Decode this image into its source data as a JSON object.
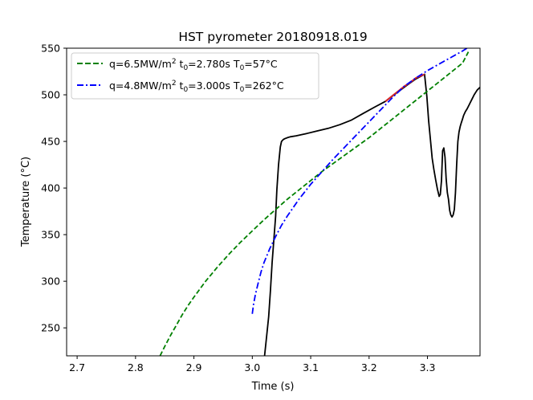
{
  "chart_data": {
    "type": "line",
    "title": "HST pyrometer 20180918.019",
    "xlabel": "Time (s)",
    "ylabel": "Temperature (°C)",
    "xlim": [
      2.682,
      3.39
    ],
    "ylim": [
      220,
      550
    ],
    "xticks": [
      2.7,
      2.8,
      2.9,
      3.0,
      3.1,
      3.2,
      3.3
    ],
    "xtick_labels": [
      "2.7",
      "2.8",
      "2.9",
      "3.0",
      "3.1",
      "3.2",
      "3.3"
    ],
    "yticks": [
      250,
      300,
      350,
      400,
      450,
      500,
      550
    ],
    "ytick_labels": [
      "250",
      "300",
      "350",
      "400",
      "450",
      "500",
      "550"
    ],
    "grid": false,
    "legend_position": "upper-left",
    "legend": [
      {
        "q": "q=6.5MW/m",
        "q_sup": "2",
        "t0": " t",
        "t0_sub": "0",
        "t0_val": "=2.780s T",
        "T0_sub": "0",
        "T0_val": "=57°C",
        "color": "#008000",
        "style": "dashed"
      },
      {
        "q": "q=4.8MW/m",
        "q_sup": "2",
        "t0": " t",
        "t0_sub": "0",
        "t0_val": "=3.000s T",
        "T0_sub": "0",
        "T0_val": "=262°C",
        "color": "#0000ff",
        "style": "dashdot"
      }
    ],
    "series": [
      {
        "role": "measured",
        "color": "#000000",
        "style": "solid",
        "x": [
          3.021,
          3.024,
          3.028,
          3.031,
          3.034,
          3.037,
          3.04,
          3.042,
          3.045,
          3.048,
          3.05,
          3.053,
          3.056,
          3.06,
          3.065,
          3.075,
          3.09,
          3.11,
          3.13,
          3.15,
          3.17,
          3.19,
          3.21,
          3.228,
          3.245,
          3.262,
          3.28,
          3.295,
          3.299,
          3.302,
          3.305,
          3.308,
          3.311,
          3.314,
          3.317,
          3.32,
          3.322,
          3.324,
          3.326,
          3.328,
          3.33,
          3.332,
          3.334,
          3.336,
          3.338,
          3.34,
          3.342,
          3.344,
          3.346,
          3.348,
          3.35,
          3.352,
          3.354,
          3.356,
          3.358,
          3.36,
          3.362,
          3.365,
          3.368,
          3.372,
          3.376,
          3.38,
          3.385,
          3.39
        ],
        "y": [
          220,
          238,
          262,
          290,
          320,
          345,
          370,
          398,
          425,
          444,
          450,
          452,
          453,
          454,
          455,
          456,
          458,
          461,
          464,
          468,
          473,
          480,
          487,
          493,
          501,
          509,
          517,
          522,
          498,
          472,
          452,
          432,
          420,
          409,
          399,
          391,
          393,
          408,
          440,
          443,
          433,
          410,
          395,
          388,
          376,
          371,
          369,
          371,
          377,
          395,
          425,
          450,
          460,
          466,
          470,
          474,
          478,
          482,
          485,
          490,
          495,
          500,
          505,
          508
        ]
      },
      {
        "role": "fit",
        "color": "#d62728",
        "style": "solid",
        "x": [
          3.228,
          3.24,
          3.25,
          3.26,
          3.27,
          3.28,
          3.295
        ],
        "y": [
          493,
          499,
          504,
          509,
          513,
          518,
          522
        ]
      },
      {
        "role": "model_1",
        "color": "#008000",
        "style": "dashed",
        "x": [
          2.842,
          2.85,
          2.86,
          2.87,
          2.88,
          2.89,
          2.9,
          2.92,
          2.94,
          2.96,
          2.98,
          3.0,
          3.02,
          3.04,
          3.06,
          3.08,
          3.1,
          3.12,
          3.14,
          3.16,
          3.18,
          3.2,
          3.22,
          3.24,
          3.26,
          3.28,
          3.3,
          3.32,
          3.34,
          3.36,
          3.37
        ],
        "y": [
          220,
          230,
          242,
          253,
          264,
          274,
          283,
          300,
          315,
          329,
          342,
          354,
          366,
          377,
          388,
          398,
          408,
          418,
          427,
          436,
          445,
          454,
          464,
          474,
          484,
          494,
          504,
          514,
          524,
          534,
          546
        ]
      },
      {
        "role": "model_2",
        "color": "#0000ff",
        "style": "dashdot",
        "x": [
          3.0,
          3.002,
          3.005,
          3.01,
          3.015,
          3.02,
          3.03,
          3.04,
          3.05,
          3.06,
          3.08,
          3.1,
          3.12,
          3.14,
          3.16,
          3.18,
          3.2,
          3.22,
          3.24,
          3.26,
          3.28,
          3.3,
          3.32,
          3.34,
          3.36,
          3.37
        ],
        "y": [
          265,
          275,
          285,
          298,
          310,
          320,
          335,
          348,
          360,
          370,
          388,
          404,
          418,
          432,
          445,
          458,
          471,
          484,
          497,
          509,
          518,
          526,
          533,
          540,
          547,
          551
        ]
      }
    ]
  }
}
